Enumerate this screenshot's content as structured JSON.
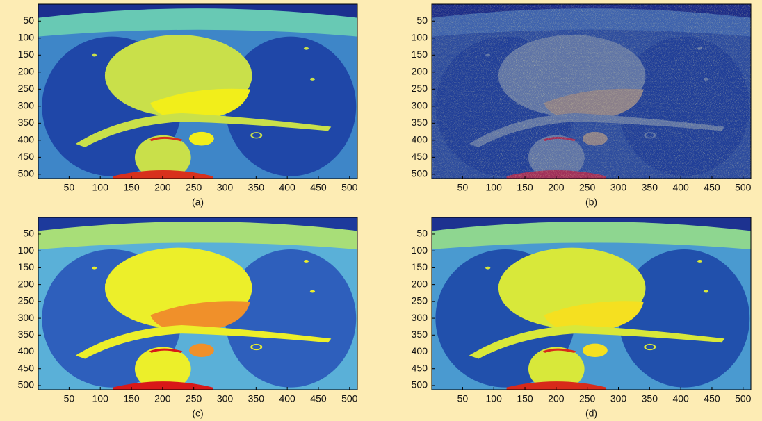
{
  "chart_data": [
    {
      "type": "image",
      "caption": "(a)",
      "xlim": [
        0.5,
        512.5
      ],
      "ylim": [
        0.5,
        512.5
      ],
      "y_reversed": true,
      "xticks": [
        50,
        100,
        150,
        200,
        250,
        300,
        350,
        400,
        450,
        500
      ],
      "yticks": [
        50,
        100,
        150,
        200,
        250,
        300,
        350,
        400,
        450,
        500
      ]
    },
    {
      "type": "image",
      "caption": "(b)",
      "xlim": [
        0.5,
        512.5
      ],
      "ylim": [
        0.5,
        512.5
      ],
      "y_reversed": true,
      "xticks": [
        50,
        100,
        150,
        200,
        250,
        300,
        350,
        400,
        450,
        500
      ],
      "yticks": [
        50,
        100,
        150,
        200,
        250,
        300,
        350,
        400,
        450,
        500
      ]
    },
    {
      "type": "image",
      "caption": "(c)",
      "xlim": [
        0.5,
        512.5
      ],
      "ylim": [
        0.5,
        512.5
      ],
      "y_reversed": true,
      "xticks": [
        50,
        100,
        150,
        200,
        250,
        300,
        350,
        400,
        450,
        500
      ],
      "yticks": [
        50,
        100,
        150,
        200,
        250,
        300,
        350,
        400,
        450,
        500
      ]
    },
    {
      "type": "image",
      "caption": "(d)",
      "xlim": [
        0.5,
        512.5
      ],
      "ylim": [
        0.5,
        512.5
      ],
      "y_reversed": true,
      "xticks": [
        50,
        100,
        150,
        200,
        250,
        300,
        350,
        400,
        450,
        500
      ],
      "yticks": [
        50,
        100,
        150,
        200,
        250,
        300,
        350,
        400,
        450,
        500
      ]
    }
  ]
}
